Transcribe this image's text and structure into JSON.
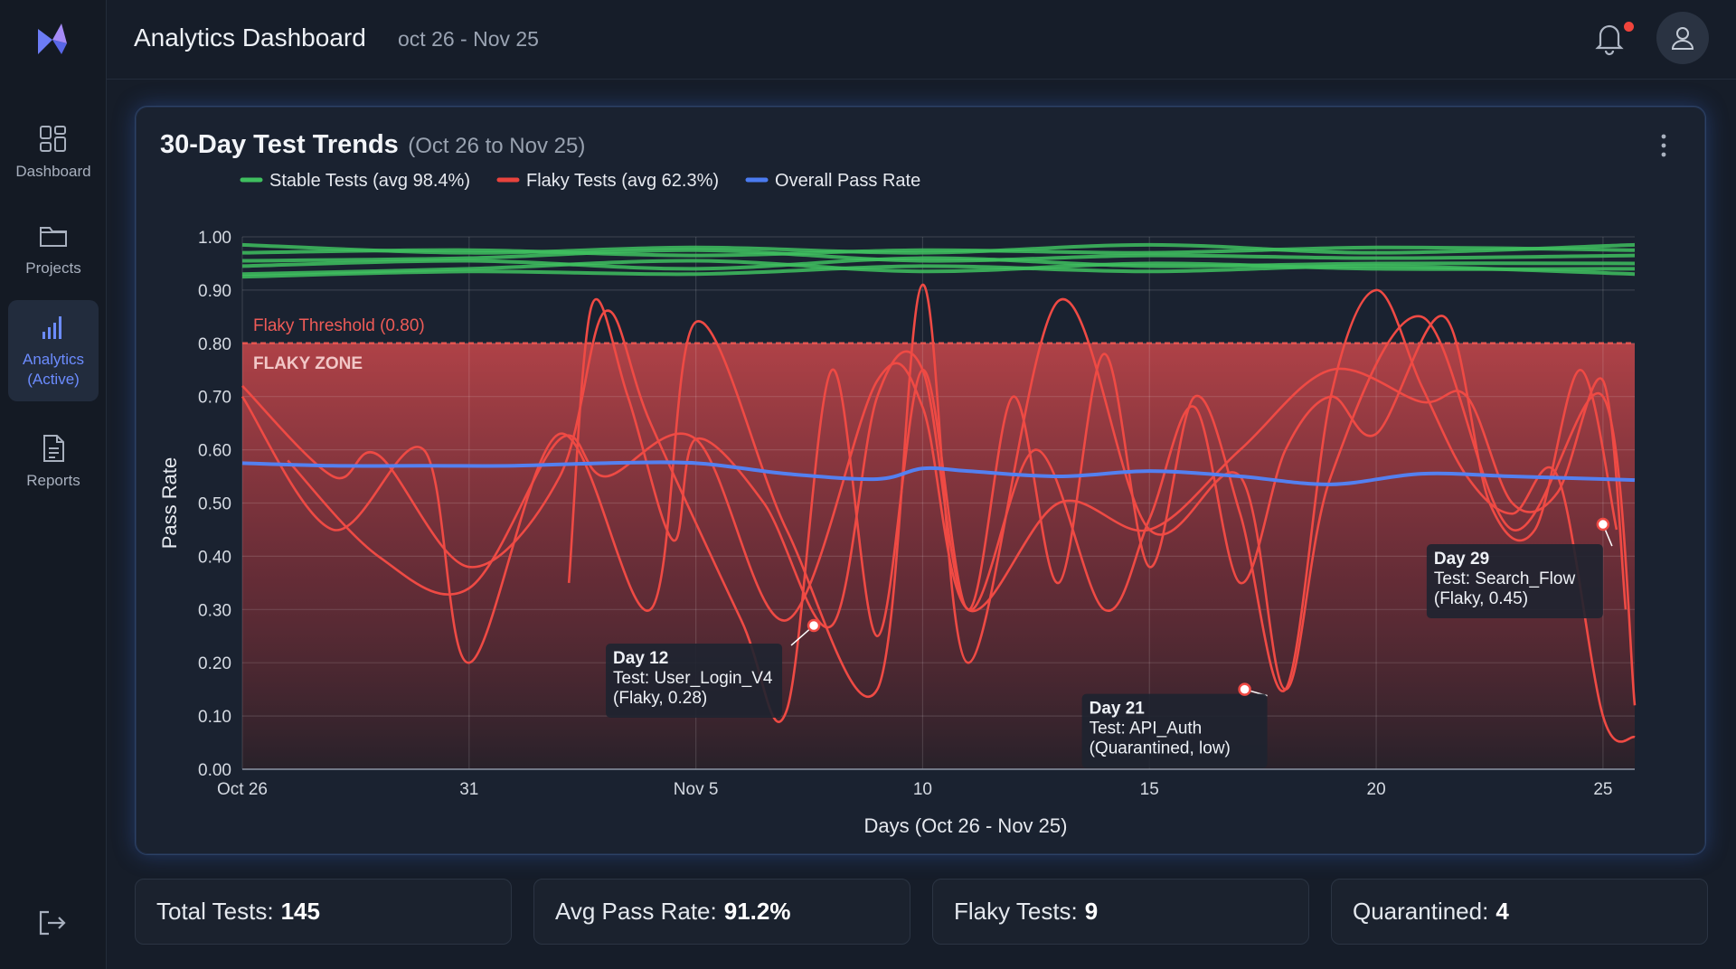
{
  "app": {
    "title": "Analytics Dashboard",
    "date_range": "oct 26 - Nov 25"
  },
  "sidebar": {
    "items": [
      {
        "label": "Dashboard",
        "icon": "grid-icon"
      },
      {
        "label": "Projects",
        "icon": "folder-icon"
      },
      {
        "label": "Analytics\n(Active)",
        "icon": "bar-chart-icon",
        "active": true
      },
      {
        "label": "Reports",
        "icon": "document-icon"
      }
    ],
    "logout_icon": "logout-icon"
  },
  "header": {
    "notification_icon": "bell-icon",
    "notification_badge": true,
    "avatar_icon": "user-icon"
  },
  "card": {
    "title": "30-Day Test Trends",
    "subtitle": "(Oct 26 to Nov 25)"
  },
  "chart_data": {
    "type": "line",
    "xlabel": "Days (Oct 26 - Nov 25)",
    "ylabel": "Pass Rate",
    "ylim": [
      0,
      1
    ],
    "yticks": [
      "0.00",
      "0.10",
      "0.20",
      "0.30",
      "0.40",
      "0.50",
      "0.60",
      "0.70",
      "0.80",
      "0.90",
      "1.00"
    ],
    "xticks": [
      {
        "day": 0,
        "label": "Oct 26"
      },
      {
        "day": 5,
        "label": "31"
      },
      {
        "day": 10,
        "label": "Nov 5"
      },
      {
        "day": 15,
        "label": "10"
      },
      {
        "day": 20,
        "label": "15"
      },
      {
        "day": 25,
        "label": "20"
      },
      {
        "day": 30,
        "label": "25"
      }
    ],
    "xlim": [
      0,
      30.7
    ],
    "grid": true,
    "legend_position": "top-left",
    "legend": [
      {
        "label": "Stable Tests (avg 98.4%)",
        "color": "#3fbf5f"
      },
      {
        "label": "Flaky Tests (avg 62.3%)",
        "color": "#e8433d"
      },
      {
        "label": "Overall Pass Rate",
        "color": "#4b7bf0"
      }
    ],
    "threshold": {
      "value": 0.8,
      "label": "Flaky Threshold (0.80)",
      "zone_label": "FLAKY ZONE"
    },
    "stable_series": [
      {
        "x": [
          0,
          5,
          10,
          15,
          20,
          25,
          30.7
        ],
        "y": [
          0.97,
          0.975,
          0.965,
          0.975,
          0.97,
          0.98,
          0.975
        ]
      },
      {
        "x": [
          0,
          5,
          10,
          15,
          20,
          25,
          30.7
        ],
        "y": [
          0.955,
          0.96,
          0.975,
          0.955,
          0.965,
          0.96,
          0.965
        ]
      },
      {
        "x": [
          0,
          5,
          10,
          15,
          20,
          25,
          30.7
        ],
        "y": [
          0.945,
          0.955,
          0.94,
          0.96,
          0.945,
          0.95,
          0.95
        ]
      },
      {
        "x": [
          0,
          5,
          10,
          15,
          20,
          25,
          30.7
        ],
        "y": [
          0.93,
          0.94,
          0.955,
          0.935,
          0.95,
          0.94,
          0.94
        ]
      },
      {
        "x": [
          0,
          5,
          10,
          15,
          20,
          25,
          30.7
        ],
        "y": [
          0.985,
          0.97,
          0.98,
          0.97,
          0.985,
          0.97,
          0.985
        ]
      },
      {
        "x": [
          0,
          5,
          10,
          15,
          20,
          25,
          30.7
        ],
        "y": [
          0.925,
          0.935,
          0.93,
          0.945,
          0.935,
          0.945,
          0.93
        ]
      }
    ],
    "flaky_series": [
      {
        "x": [
          0,
          2,
          4,
          5,
          7,
          9,
          10,
          12,
          14,
          15,
          16,
          18,
          20,
          22,
          23,
          24,
          26,
          28,
          30,
          30.7
        ],
        "y": [
          0.7,
          0.45,
          0.6,
          0.2,
          0.63,
          0.3,
          0.84,
          0.45,
          0.15,
          0.91,
          0.2,
          0.88,
          0.45,
          0.55,
          0.15,
          0.55,
          0.85,
          0.45,
          0.7,
          0.12
        ]
      },
      {
        "x": [
          0,
          2,
          3,
          5,
          7,
          8,
          9,
          11,
          12,
          13,
          14,
          15,
          16,
          17,
          18,
          19,
          20,
          21,
          22,
          23,
          24,
          25,
          26,
          27,
          28,
          29,
          30,
          30.7
        ],
        "y": [
          0.72,
          0.55,
          0.59,
          0.38,
          0.55,
          0.86,
          0.65,
          0.28,
          0.11,
          0.75,
          0.25,
          0.75,
          0.3,
          0.7,
          0.35,
          0.78,
          0.38,
          0.7,
          0.48,
          0.15,
          0.7,
          0.9,
          0.72,
          0.55,
          0.48,
          0.55,
          0.1,
          0.06
        ]
      },
      {
        "x": [
          1,
          3,
          5,
          7,
          8,
          10,
          12,
          14,
          15,
          16,
          18,
          20,
          22,
          24,
          26,
          27,
          28,
          29,
          30,
          30.5
        ],
        "y": [
          0.58,
          0.4,
          0.34,
          0.62,
          0.55,
          0.62,
          0.28,
          0.73,
          0.68,
          0.3,
          0.5,
          0.45,
          0.6,
          0.75,
          0.69,
          0.7,
          0.5,
          0.52,
          0.73,
          0.3
        ]
      },
      {
        "x": [
          7.2,
          7.7,
          8.5,
          9.5,
          10,
          11.5,
          13,
          14,
          15,
          16,
          17.5,
          19,
          20,
          21,
          22,
          23,
          24,
          25,
          26.5,
          27.5,
          28.5,
          29.5,
          30.3
        ],
        "y": [
          0.35,
          0.87,
          0.7,
          0.43,
          0.62,
          0.5,
          0.27,
          0.7,
          0.75,
          0.3,
          0.6,
          0.3,
          0.47,
          0.68,
          0.35,
          0.6,
          0.7,
          0.63,
          0.85,
          0.5,
          0.45,
          0.75,
          0.45
        ]
      }
    ],
    "overall_series": {
      "x": [
        0,
        2,
        4,
        6,
        8,
        10,
        12,
        14,
        15,
        16,
        18,
        20,
        22,
        24,
        26,
        28,
        30,
        30.7
      ],
      "y": [
        0.575,
        0.57,
        0.57,
        0.57,
        0.575,
        0.575,
        0.555,
        0.545,
        0.565,
        0.56,
        0.55,
        0.56,
        0.55,
        0.535,
        0.555,
        0.55,
        0.545,
        0.543
      ]
    },
    "annotations": [
      {
        "x": 12.6,
        "y": 0.27,
        "lines": [
          "Day 12",
          "Test: User_Login_V4",
          "(Flaky, 0.28)"
        ],
        "box_corner": "below-left"
      },
      {
        "x": 22.1,
        "y": 0.15,
        "lines": [
          "Day 21",
          "Test: API_Auth",
          "(Quarantined, low)"
        ],
        "box_corner": "below-left"
      },
      {
        "x": 30,
        "y": 0.46,
        "lines": [
          "Day 29",
          "Test: Search_Flow",
          "(Flaky, 0.45)"
        ],
        "box_corner": "below-left"
      }
    ]
  },
  "stats": [
    {
      "label": "Total Tests:",
      "value": "145"
    },
    {
      "label": "Avg Pass Rate:",
      "value": "91.2%"
    },
    {
      "label": "Flaky Tests:",
      "value": "9"
    },
    {
      "label": "Quarantined:",
      "value": "4"
    }
  ]
}
